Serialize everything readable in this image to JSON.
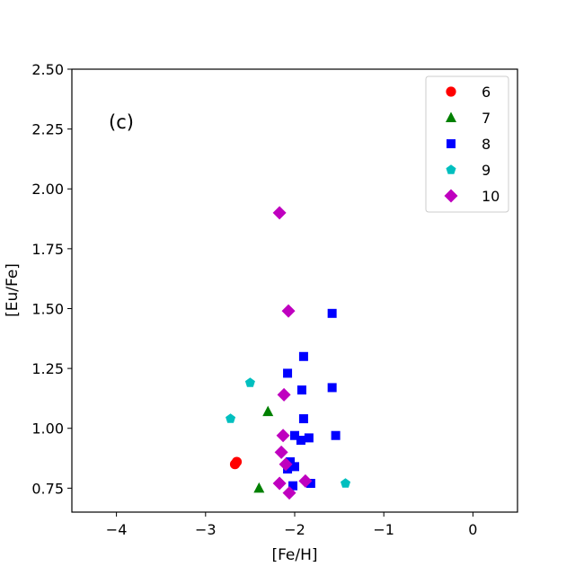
{
  "chart_data": {
    "type": "scatter",
    "title": "",
    "xlabel": "[Fe/H]",
    "ylabel": "[Eu/Fe]",
    "xlim": [
      -4.5,
      0.5
    ],
    "ylim": [
      0.65,
      2.5
    ],
    "xticks": [
      -4,
      -3,
      -2,
      -1,
      0
    ],
    "xtick_labels": [
      "−4",
      "−3",
      "−2",
      "−1",
      "0"
    ],
    "yticks": [
      0.75,
      1.0,
      1.25,
      1.5,
      1.75,
      2.0,
      2.25,
      2.5
    ],
    "ytick_labels": [
      "0.75",
      "1.00",
      "1.25",
      "1.50",
      "1.75",
      "2.00",
      "2.25",
      "2.50"
    ],
    "grid": false,
    "legend_position": "top-right",
    "annotation": "(c)",
    "series": [
      {
        "name": "6",
        "marker": "circle",
        "color": "#ff0000",
        "points": [
          [
            -2.67,
            0.85
          ],
          [
            -2.65,
            0.86
          ]
        ]
      },
      {
        "name": "7",
        "marker": "triangle",
        "color": "#008000",
        "points": [
          [
            -2.3,
            1.07
          ],
          [
            -2.4,
            0.75
          ]
        ]
      },
      {
        "name": "8",
        "marker": "square",
        "color": "#0000ff",
        "points": [
          [
            -1.58,
            1.48
          ],
          [
            -1.9,
            1.3
          ],
          [
            -2.08,
            1.23
          ],
          [
            -1.58,
            1.17
          ],
          [
            -1.92,
            1.16
          ],
          [
            -1.9,
            1.04
          ],
          [
            -1.54,
            0.97
          ],
          [
            -2.0,
            0.97
          ],
          [
            -1.84,
            0.96
          ],
          [
            -1.93,
            0.95
          ],
          [
            -2.05,
            0.86
          ],
          [
            -2.0,
            0.84
          ],
          [
            -2.08,
            0.83
          ],
          [
            -1.82,
            0.77
          ],
          [
            -2.02,
            0.76
          ]
        ]
      },
      {
        "name": "9",
        "marker": "pentagon",
        "color": "#00bfbf",
        "points": [
          [
            -2.5,
            1.19
          ],
          [
            -2.72,
            1.04
          ],
          [
            -1.43,
            0.77
          ]
        ]
      },
      {
        "name": "10",
        "marker": "diamond",
        "color": "#bf00bf",
        "points": [
          [
            -2.17,
            1.9
          ],
          [
            -2.07,
            1.49
          ],
          [
            -2.12,
            1.14
          ],
          [
            -2.13,
            0.97
          ],
          [
            -2.15,
            0.9
          ],
          [
            -2.1,
            0.85
          ],
          [
            -1.88,
            0.78
          ],
          [
            -2.17,
            0.77
          ],
          [
            -2.06,
            0.73
          ]
        ]
      }
    ]
  }
}
